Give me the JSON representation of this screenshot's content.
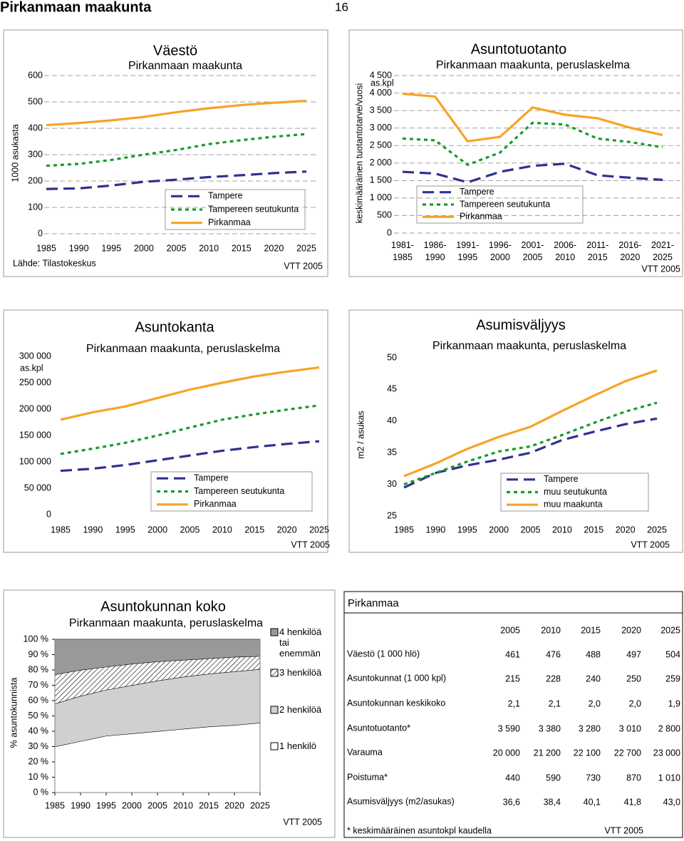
{
  "header": {
    "title": "Pirkanmaan maakunta",
    "page": "16"
  },
  "chart_data": [
    {
      "type": "line",
      "title": "Väestö",
      "subtitle": "Pirkanmaan maakunta",
      "ylabel": "1000 asukasta",
      "source": "Lähde: Tilastokeskus",
      "credit": "VTT 2005",
      "x": [
        1985,
        1990,
        1995,
        2000,
        2005,
        2010,
        2015,
        2020,
        2025
      ],
      "xlim": [
        1985,
        2025
      ],
      "xticks": [
        1985,
        1990,
        1995,
        2000,
        2005,
        2010,
        2015,
        2020,
        2025
      ],
      "ylim": [
        0,
        600
      ],
      "yticks": [
        0,
        100,
        200,
        300,
        400,
        500,
        600
      ],
      "grid": true,
      "series": [
        {
          "name": "Tampere",
          "color": "#2e3192",
          "style": "dashed",
          "values": [
            170,
            172,
            183,
            197,
            205,
            215,
            222,
            230,
            236
          ]
        },
        {
          "name": "Tampereen seutukunta",
          "color": "#1a9a2a",
          "style": "dotted",
          "values": [
            258,
            265,
            280,
            300,
            318,
            340,
            355,
            368,
            378
          ]
        },
        {
          "name": "Pirkanmaa",
          "color": "#f7a325",
          "style": "solid",
          "values": [
            412,
            420,
            430,
            443,
            461,
            476,
            488,
            497,
            504
          ]
        }
      ]
    },
    {
      "type": "line",
      "title": "Asuntotuotanto",
      "subtitle": "Pirkanmaan maakunta, peruslaskelma",
      "ylabel": "keskimääräinen tuotantotarve/vuosi",
      "y_unit": "as.kpl",
      "credit": "VTT 2005",
      "categories": [
        "1981-1985",
        "1986-1990",
        "1991-1995",
        "1996-2000",
        "2001-2005",
        "2006-2010",
        "2011-2015",
        "2016-2020",
        "2021-2025"
      ],
      "ylim": [
        0,
        4500
      ],
      "yticks": [
        0,
        500,
        {
          "value": 1000,
          "label": "1 000"
        },
        {
          "value": 1500,
          "label": "1 500"
        },
        {
          "value": 2000,
          "label": "2 000"
        },
        {
          "value": 2500,
          "label": "2 500"
        },
        {
          "value": 3000,
          "label": "3 000"
        },
        {
          "value": 3500,
          "label": "3 500"
        },
        {
          "value": 4000,
          "label": "4 000"
        },
        {
          "value": 4500,
          "label": "4 500"
        }
      ],
      "grid": true,
      "series": [
        {
          "name": "Tampere",
          "color": "#2e3192",
          "style": "dashed",
          "values": [
            1750,
            1700,
            1450,
            1750,
            1920,
            1980,
            1650,
            1580,
            1520
          ]
        },
        {
          "name": "Tampereen seutukunta",
          "color": "#1a9a2a",
          "style": "dotted",
          "values": [
            2700,
            2650,
            1950,
            2300,
            3150,
            3100,
            2700,
            2600,
            2450
          ]
        },
        {
          "name": "Pirkanmaa",
          "color": "#f7a325",
          "style": "solid",
          "values": [
            3980,
            3900,
            2620,
            2750,
            3590,
            3380,
            3280,
            3010,
            2800
          ]
        }
      ]
    },
    {
      "type": "line",
      "title": "Asuntokanta",
      "subtitle": "Pirkanmaan maakunta, peruslaskelma",
      "y_unit": "as.kpl",
      "credit": "VTT 2005",
      "x": [
        1985,
        1990,
        1995,
        2000,
        2005,
        2010,
        2015,
        2020,
        2025
      ],
      "xlim": [
        1985,
        2025
      ],
      "xticks": [
        1985,
        1990,
        1995,
        2000,
        2005,
        2010,
        2015,
        2020,
        2025
      ],
      "ylim": [
        0,
        300000
      ],
      "yticks": [
        0,
        {
          "value": 50000,
          "label": "50 000"
        },
        {
          "value": 100000,
          "label": "100 000"
        },
        {
          "value": 150000,
          "label": "150 000"
        },
        {
          "value": 200000,
          "label": "200 000"
        },
        {
          "value": 250000,
          "label": "250 000"
        },
        {
          "value": 300000,
          "label": "300 000"
        }
      ],
      "grid": false,
      "series": [
        {
          "name": "Tampere",
          "color": "#2e3192",
          "style": "dashed",
          "values": [
            83000,
            87000,
            94000,
            103000,
            112000,
            121000,
            128000,
            134000,
            139000
          ]
        },
        {
          "name": "Tampereen seutukunta",
          "color": "#1a9a2a",
          "style": "dotted",
          "values": [
            115000,
            125000,
            136000,
            150000,
            165000,
            180000,
            190000,
            199000,
            207000
          ]
        },
        {
          "name": "Pirkanmaa",
          "color": "#f7a325",
          "style": "solid",
          "values": [
            180000,
            194000,
            205000,
            221000,
            237000,
            250000,
            262000,
            271000,
            279000
          ]
        }
      ]
    },
    {
      "type": "line",
      "title": "Asumisväljyys",
      "subtitle": "Pirkanmaan maakunta, peruslaskelma",
      "ylabel": "m2 / asukas",
      "credit": "VTT 2005",
      "x": [
        1985,
        1990,
        1995,
        2000,
        2005,
        2010,
        2015,
        2020,
        2025
      ],
      "xlim": [
        1985,
        2025
      ],
      "xticks": [
        1985,
        1990,
        1995,
        2000,
        2005,
        2010,
        2015,
        2020,
        2025
      ],
      "ylim": [
        25,
        50
      ],
      "yticks": [
        25,
        30,
        35,
        40,
        45,
        50
      ],
      "grid": false,
      "series": [
        {
          "name": "Tampere",
          "color": "#2e3192",
          "style": "dashed",
          "values": [
            29.5,
            31.8,
            33.0,
            33.9,
            35.0,
            37.0,
            38.3,
            39.5,
            40.4
          ]
        },
        {
          "name": "muu seutukunta",
          "color": "#1a9a2a",
          "style": "dotted",
          "values": [
            30.0,
            31.8,
            33.6,
            35.2,
            36.0,
            37.8,
            39.7,
            41.5,
            42.9
          ]
        },
        {
          "name": "muu maakunta",
          "color": "#f7a325",
          "style": "solid",
          "values": [
            31.3,
            33.3,
            35.6,
            37.5,
            39.1,
            41.6,
            44.0,
            46.3,
            48.0
          ]
        }
      ]
    },
    {
      "type": "stacked_area",
      "title": "Asuntokunnan koko",
      "subtitle": "Pirkanmaan maakunta, peruslaskelma",
      "ylabel": "% asuntokunnista",
      "credit": "VTT 2005",
      "x": [
        1985,
        1990,
        1995,
        2000,
        2005,
        2010,
        2015,
        2020,
        2025
      ],
      "xlim": [
        1985,
        2025
      ],
      "xticks": [
        1985,
        1990,
        1995,
        2000,
        2005,
        2010,
        2015,
        2020,
        2025
      ],
      "ylim": [
        0,
        100
      ],
      "yticks": [
        {
          "value": 0,
          "label": "0 %"
        },
        {
          "value": 10,
          "label": "10 %"
        },
        {
          "value": 20,
          "label": "20 %"
        },
        {
          "value": 30,
          "label": "30 %"
        },
        {
          "value": 40,
          "label": "40 %"
        },
        {
          "value": 50,
          "label": "50 %"
        },
        {
          "value": 60,
          "label": "60 %"
        },
        {
          "value": 70,
          "label": "70 %"
        },
        {
          "value": 80,
          "label": "80 %"
        },
        {
          "value": 90,
          "label": "90 %"
        },
        {
          "value": 100,
          "label": "100 %"
        }
      ],
      "series": [
        {
          "name": "1 henkilö",
          "color": "#ffffff",
          "values": [
            30,
            33.5,
            37,
            38.5,
            40,
            41.5,
            43,
            44,
            45.5
          ]
        },
        {
          "name": "2 henkilöä",
          "color": "#d0d0d0",
          "values": [
            28,
            29.5,
            30,
            31.5,
            33,
            34,
            34.5,
            35,
            35
          ]
        },
        {
          "name": "3 henkilöä",
          "color": "#ffffff",
          "pattern": "hatch",
          "values": [
            19,
            17,
            15,
            14,
            12.5,
            11,
            10,
            9.5,
            8.5
          ]
        },
        {
          "name": "4 henkilöä tai enemmän",
          "color": "#999999",
          "values": [
            23,
            20,
            18,
            16,
            14.5,
            13.5,
            12.5,
            11.5,
            11
          ]
        }
      ]
    }
  ],
  "table": {
    "title": "Pirkanmaa",
    "columns": [
      "2005",
      "2010",
      "2015",
      "2020",
      "2025"
    ],
    "rows": [
      {
        "label": "Väestö (1 000 hlö)",
        "cells": [
          "461",
          "476",
          "488",
          "497",
          "504"
        ]
      },
      {
        "label": "Asuntokunnat (1 000 kpl)",
        "cells": [
          "215",
          "228",
          "240",
          "250",
          "259"
        ]
      },
      {
        "label": "Asuntokunnan keskikoko",
        "cells": [
          "2,1",
          "2,1",
          "2,0",
          "2,0",
          "1,9"
        ]
      },
      {
        "label": "Asuntotuotanto*",
        "cells": [
          "3 590",
          "3 380",
          "3 280",
          "3 010",
          "2 800"
        ]
      },
      {
        "label": "Varauma",
        "cells": [
          "20 000",
          "21 200",
          "22 100",
          "22 700",
          "23 000"
        ]
      },
      {
        "label": "Poistuma*",
        "cells": [
          "440",
          "590",
          "730",
          "870",
          "1 010"
        ]
      },
      {
        "label": "Asumisväljyys (m2/asukas)",
        "cells": [
          "36,6",
          "38,4",
          "40,1",
          "41,8",
          "43,0"
        ]
      }
    ],
    "footnote": "* keskimääräinen asuntokpl kaudella",
    "credit": "VTT 2005"
  }
}
